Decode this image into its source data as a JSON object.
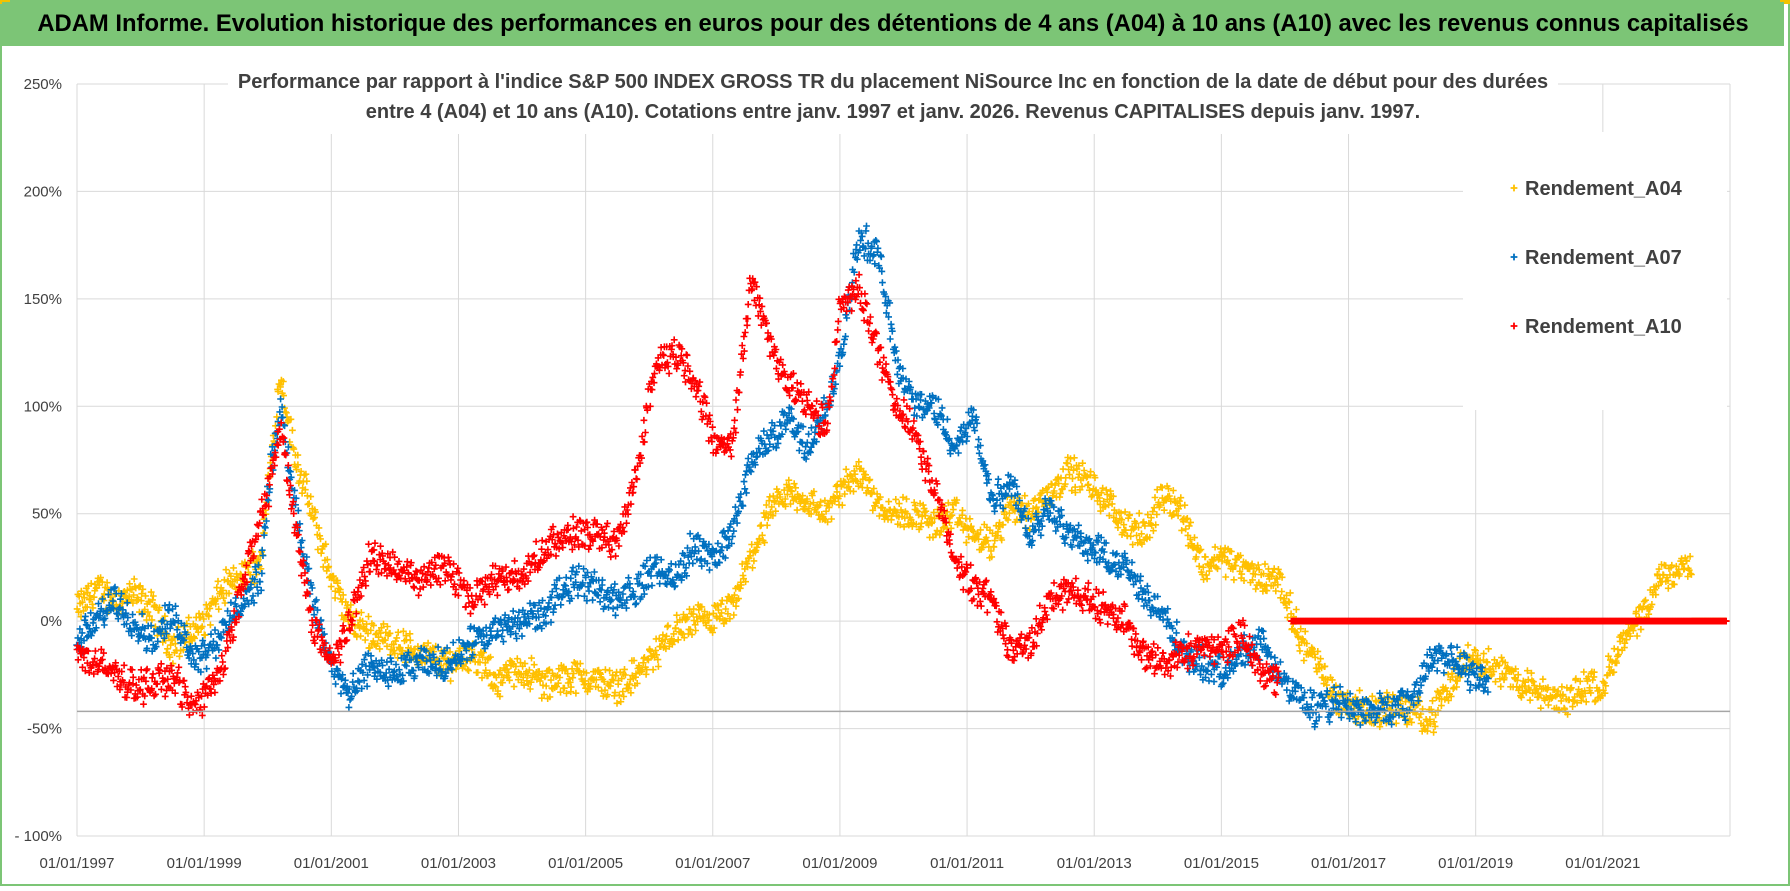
{
  "banner": {
    "title": "ADAM Informe. Evolution historique des performances en euros pour des détentions de 4 ans (A04) à 10 ans (A10) avec les revenus connus capitalisés"
  },
  "colors": {
    "banner_bg": "#7cc576",
    "grid": "#d9d9d9",
    "axis_text": "#404040",
    "title_text": "#404040",
    "A04": "#ffc000",
    "A07": "#0070c0",
    "A10": "#ff0000"
  },
  "chart_data": {
    "type": "scatter",
    "title_line1": "Performance par rapport à l'indice S&P 500 INDEX GROSS TR  du placement NiSource Inc en fonction de la date de début pour des durées",
    "title_line2": "entre 4 (A04) et 10 ans (A10).  Cotations entre janv. 1997 et janv. 2026. Revenus CAPITALISES  depuis janv. 1997.",
    "xlabel": "",
    "ylabel": "",
    "xlim": [
      1997.0,
      2023.0
    ],
    "ylim": [
      -100,
      250
    ],
    "y_ticks": [
      250,
      200,
      150,
      100,
      50,
      0,
      -50,
      -100
    ],
    "y_tick_labels": [
      "250%",
      "200%",
      "150%",
      "100%",
      "50%",
      "0%",
      "-50%",
      "- 100%"
    ],
    "x_ticks": [
      1997,
      1999,
      2001,
      2003,
      2005,
      2007,
      2009,
      2011,
      2013,
      2015,
      2017,
      2019,
      2021
    ],
    "x_tick_labels": [
      "01/01/1997",
      "01/01/1999",
      "01/01/2001",
      "01/01/2003",
      "01/01/2005",
      "01/01/2007",
      "01/01/2009",
      "01/01/2011",
      "01/01/2013",
      "01/01/2015",
      "01/01/2017",
      "01/01/2019",
      "01/01/2021"
    ],
    "reference_line": -42,
    "grid": true,
    "legend_position": "top-right",
    "series": [
      {
        "name": "Rendement_A04",
        "x": [
          1997.0,
          1997.3,
          1997.6,
          1997.9,
          1998.2,
          1998.5,
          1998.8,
          1999.0,
          1999.3,
          1999.6,
          1999.9,
          2000.0,
          2000.2,
          2000.4,
          2000.7,
          2001.0,
          2001.3,
          2001.6,
          2002.0,
          2002.4,
          2002.8,
          2003.2,
          2003.6,
          2004.0,
          2004.4,
          2004.8,
          2005.2,
          2005.5,
          2005.8,
          2006.1,
          2006.4,
          2006.7,
          2007.0,
          2007.3,
          2007.6,
          2007.9,
          2008.2,
          2008.5,
          2008.8,
          2009.0,
          2009.3,
          2009.6,
          2009.9,
          2010.2,
          2010.5,
          2010.8,
          2011.1,
          2011.4,
          2011.7,
          2012.0,
          2012.3,
          2012.6,
          2012.9,
          2013.2,
          2013.5,
          2013.8,
          2014.1,
          2014.4,
          2014.7,
          2015.0,
          2015.3,
          2015.6,
          2015.9,
          2016.2,
          2016.5,
          2016.8,
          2017.1,
          2017.4,
          2017.7,
          2018.0,
          2018.3,
          2018.6,
          2018.9,
          2019.2,
          2019.5,
          2019.8,
          2020.1,
          2020.4,
          2020.7,
          2021.0,
          2021.3,
          2021.6,
          2021.9,
          2022.2,
          2022.4
        ],
        "y": [
          5,
          15,
          10,
          12,
          5,
          -12,
          -5,
          0,
          15,
          20,
          30,
          60,
          115,
          80,
          50,
          20,
          0,
          -5,
          -10,
          -15,
          -20,
          -15,
          -28,
          -22,
          -30,
          -25,
          -28,
          -30,
          -25,
          -15,
          -5,
          0,
          0,
          5,
          30,
          50,
          60,
          55,
          50,
          60,
          70,
          55,
          50,
          50,
          45,
          50,
          40,
          35,
          55,
          50,
          60,
          70,
          65,
          55,
          45,
          40,
          60,
          50,
          25,
          30,
          25,
          20,
          20,
          -5,
          -20,
          -35,
          -40,
          -42,
          -40,
          -42,
          -45,
          -30,
          -15,
          -20,
          -25,
          -30,
          -35,
          -38,
          -30,
          -30,
          -10,
          0,
          20,
          25,
          25
        ]
      },
      {
        "name": "Rendement_A07",
        "x": [
          1997.0,
          1997.3,
          1997.6,
          1997.9,
          1998.2,
          1998.5,
          1998.8,
          1999.0,
          1999.3,
          1999.6,
          1999.9,
          2000.0,
          2000.2,
          2000.4,
          2000.7,
          2001.0,
          2001.3,
          2001.6,
          2002.0,
          2002.4,
          2002.8,
          2003.2,
          2003.6,
          2004.0,
          2004.4,
          2004.8,
          2005.2,
          2005.5,
          2005.8,
          2006.1,
          2006.4,
          2006.7,
          2007.0,
          2007.3,
          2007.6,
          2007.9,
          2008.2,
          2008.5,
          2008.8,
          2009.0,
          2009.3,
          2009.6,
          2009.9,
          2010.2,
          2010.5,
          2010.8,
          2011.1,
          2011.4,
          2011.7,
          2012.0,
          2012.3,
          2012.6,
          2012.9,
          2013.2,
          2013.5,
          2013.8,
          2014.1,
          2014.4,
          2014.7,
          2015.0,
          2015.3,
          2015.6,
          2015.9,
          2016.2,
          2016.5,
          2016.8,
          2017.1,
          2017.4,
          2017.7,
          2018.0,
          2018.3,
          2018.6,
          2018.9,
          2019.2
        ],
        "y": [
          -10,
          0,
          10,
          0,
          -10,
          5,
          -15,
          -15,
          -5,
          10,
          20,
          60,
          100,
          60,
          10,
          -20,
          -35,
          -20,
          -25,
          -20,
          -20,
          -10,
          -5,
          0,
          5,
          20,
          15,
          10,
          15,
          25,
          20,
          35,
          30,
          40,
          75,
          85,
          95,
          80,
          100,
          120,
          180,
          170,
          120,
          100,
          100,
          80,
          95,
          55,
          65,
          40,
          55,
          40,
          35,
          30,
          25,
          10,
          5,
          -15,
          -20,
          -25,
          -15,
          -10,
          -25,
          -35,
          -42,
          -38,
          -40,
          -42,
          -40,
          -38,
          -15,
          -18,
          -25,
          -28
        ]
      },
      {
        "name": "Rendement_A10",
        "x": [
          1997.0,
          1997.3,
          1997.6,
          1997.9,
          1998.2,
          1998.5,
          1998.8,
          1999.0,
          1999.3,
          1999.6,
          1999.9,
          2000.0,
          2000.2,
          2000.4,
          2000.7,
          2001.0,
          2001.3,
          2001.6,
          2002.0,
          2002.4,
          2002.8,
          2003.2,
          2003.6,
          2004.0,
          2004.4,
          2004.8,
          2005.2,
          2005.5,
          2005.8,
          2006.1,
          2006.4,
          2006.7,
          2007.0,
          2007.3,
          2007.6,
          2007.9,
          2008.2,
          2008.5,
          2008.8,
          2009.0,
          2009.3,
          2009.6,
          2009.9,
          2010.2,
          2010.5,
          2010.8,
          2011.1,
          2011.4,
          2011.7,
          2012.0,
          2012.3,
          2012.6,
          2012.9,
          2013.2,
          2013.5,
          2013.8,
          2014.1,
          2014.4,
          2014.7,
          2015.0,
          2015.3,
          2015.6,
          2015.9
        ],
        "y": [
          -15,
          -20,
          -25,
          -30,
          -30,
          -25,
          -40,
          -35,
          -20,
          15,
          50,
          60,
          90,
          50,
          0,
          -20,
          0,
          30,
          25,
          20,
          25,
          10,
          20,
          20,
          35,
          40,
          40,
          35,
          70,
          120,
          125,
          115,
          85,
          80,
          160,
          130,
          110,
          100,
          90,
          145,
          155,
          125,
          100,
          85,
          60,
          30,
          15,
          10,
          -15,
          -10,
          10,
          15,
          10,
          5,
          0,
          -15,
          -20,
          -15,
          -10,
          -15,
          -5,
          -20,
          -30
        ]
      }
    ],
    "A10_flat_segment": {
      "x_start": 2016.1,
      "x_end": 2022.95,
      "y": 0
    },
    "A04_flat_segment": {
      "x_start": 2022.4,
      "x_end": 2022.95,
      "y": 0
    }
  }
}
